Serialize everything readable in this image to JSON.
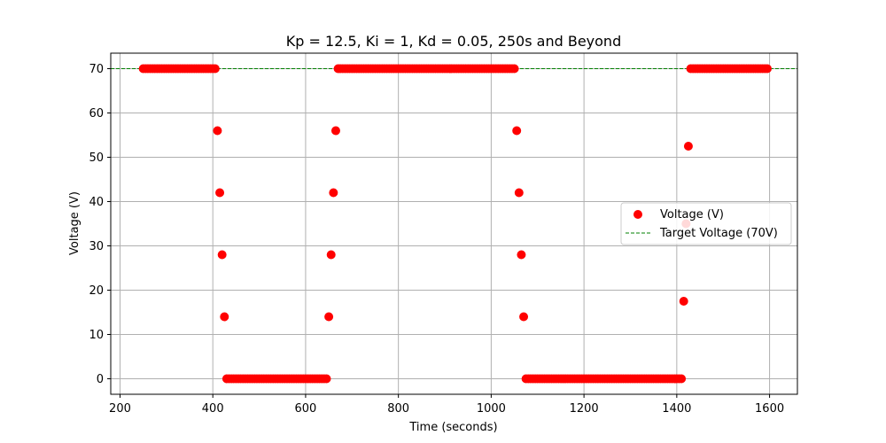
{
  "chart_data": {
    "type": "scatter",
    "title": "Kp = 12.5, Ki = 1, Kd = 0.05, 250s and Beyond",
    "xlabel": "Time (seconds)",
    "ylabel": "Voltage (V)",
    "xlim": [
      180,
      1660
    ],
    "ylim": [
      -3.5,
      73.5
    ],
    "xticks": [
      200,
      400,
      600,
      800,
      1000,
      1200,
      1400,
      1600
    ],
    "yticks": [
      0,
      10,
      20,
      30,
      40,
      50,
      60,
      70
    ],
    "grid": true,
    "legend_position": "center-right",
    "step": 5,
    "series": [
      {
        "name": "Voltage (V)",
        "kind": "scatter",
        "color": "#ff0000",
        "segments": [
          {
            "t0": 250,
            "t1": 405,
            "v0": 70,
            "v1": 70
          },
          {
            "t0": 405,
            "t1": 430,
            "v0": 70,
            "v1": 0
          },
          {
            "t0": 430,
            "t1": 645,
            "v0": 0,
            "v1": 0
          },
          {
            "t0": 645,
            "t1": 670,
            "v0": 0,
            "v1": 70
          },
          {
            "t0": 670,
            "t1": 1050,
            "v0": 70,
            "v1": 70
          },
          {
            "t0": 1050,
            "t1": 1075,
            "v0": 70,
            "v1": 0
          },
          {
            "t0": 1075,
            "t1": 1410,
            "v0": 0,
            "v1": 0
          },
          {
            "t0": 1410,
            "t1": 1430,
            "v0": 0,
            "v1": 70
          },
          {
            "t0": 1430,
            "t1": 1595,
            "v0": 70,
            "v1": 70
          }
        ]
      },
      {
        "name": "Target Voltage (70V)",
        "kind": "hline",
        "color": "#008000",
        "value": 70
      }
    ]
  }
}
